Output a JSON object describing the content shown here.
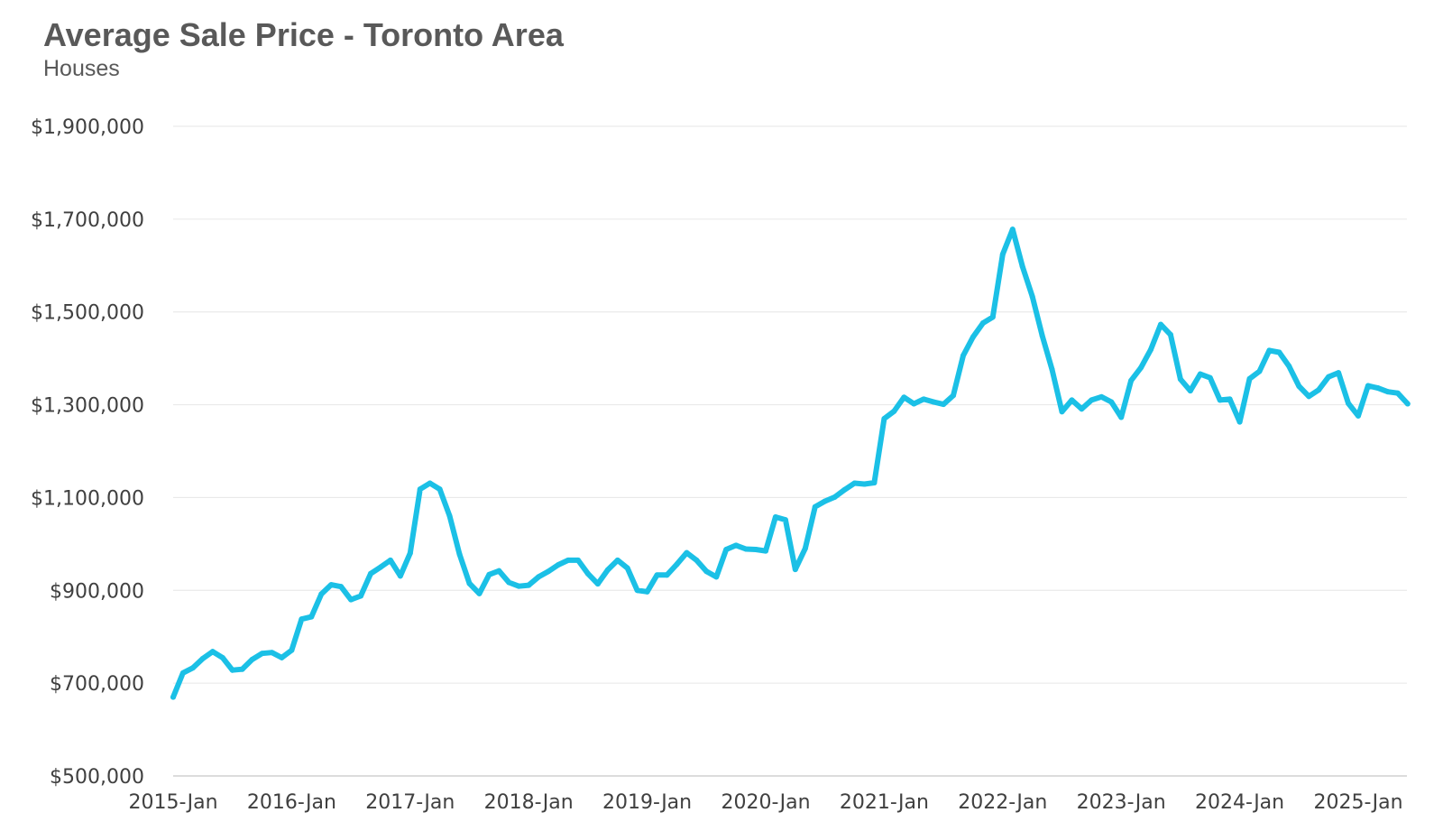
{
  "chart_data": {
    "type": "line",
    "title": "Average Sale Price - Toronto Area",
    "subtitle": "Houses",
    "xlabel": "",
    "ylabel": "",
    "ylim": [
      500000,
      1900000
    ],
    "yticks": [
      500000,
      700000,
      900000,
      1100000,
      1300000,
      1500000,
      1700000,
      1900000
    ],
    "ytick_labels": [
      "$500,000",
      "$700,000",
      "$900,000",
      "$1,100,000",
      "$1,300,000",
      "$1,500,000",
      "$1,700,000",
      "$1,900,000"
    ],
    "xtick_labels": [
      "2015-Jan",
      "2016-Jan",
      "2017-Jan",
      "2018-Jan",
      "2019-Jan",
      "2020-Jan",
      "2021-Jan",
      "2022-Jan",
      "2023-Jan",
      "2024-Jan",
      "2025-Jan"
    ],
    "grid": true,
    "legend": "none",
    "line_color": "#1BC0E6",
    "series": [
      {
        "x": [
          "2015-Jan",
          "2015-Feb",
          "2015-Mar",
          "2015-Apr",
          "2015-May",
          "2015-Jun",
          "2015-Jul",
          "2015-Aug",
          "2015-Sep",
          "2015-Oct",
          "2015-Nov",
          "2015-Dec",
          "2016-Jan",
          "2016-Feb",
          "2016-Mar",
          "2016-Apr",
          "2016-May",
          "2016-Jun",
          "2016-Jul",
          "2016-Aug",
          "2016-Sep",
          "2016-Oct",
          "2016-Nov",
          "2016-Dec",
          "2017-Jan",
          "2017-Feb",
          "2017-Mar",
          "2017-Apr",
          "2017-May",
          "2017-Jun",
          "2017-Jul",
          "2017-Aug",
          "2017-Sep",
          "2017-Oct",
          "2017-Nov",
          "2017-Dec",
          "2018-Jan",
          "2018-Feb",
          "2018-Mar",
          "2018-Apr",
          "2018-May",
          "2018-Jun",
          "2018-Jul",
          "2018-Aug",
          "2018-Sep",
          "2018-Oct",
          "2018-Nov",
          "2018-Dec",
          "2019-Jan",
          "2019-Feb",
          "2019-Mar",
          "2019-Apr",
          "2019-May",
          "2019-Jun",
          "2019-Jul",
          "2019-Aug",
          "2019-Sep",
          "2019-Oct",
          "2019-Nov",
          "2019-Dec",
          "2020-Jan",
          "2020-Feb",
          "2020-Mar",
          "2020-Apr",
          "2020-May",
          "2020-Jun",
          "2020-Jul",
          "2020-Aug",
          "2020-Sep",
          "2020-Oct",
          "2020-Nov",
          "2020-Dec",
          "2021-Jan",
          "2021-Feb",
          "2021-Mar",
          "2021-Apr",
          "2021-May",
          "2021-Jun",
          "2021-Jul",
          "2021-Aug",
          "2021-Sep",
          "2021-Oct",
          "2021-Nov",
          "2021-Dec",
          "2022-Jan",
          "2022-Feb",
          "2022-Mar",
          "2022-Apr",
          "2022-May",
          "2022-Jun",
          "2022-Jul",
          "2022-Aug",
          "2022-Sep",
          "2022-Oct",
          "2022-Nov",
          "2022-Dec",
          "2023-Jan",
          "2023-Feb",
          "2023-Mar",
          "2023-Apr",
          "2023-May",
          "2023-Jun",
          "2023-Jul",
          "2023-Aug",
          "2023-Sep",
          "2023-Oct",
          "2023-Nov",
          "2023-Dec",
          "2024-Jan",
          "2024-Feb",
          "2024-Mar",
          "2024-Apr",
          "2024-May",
          "2024-Jun",
          "2024-Jul",
          "2024-Aug",
          "2024-Sep",
          "2024-Oct",
          "2024-Nov",
          "2024-Dec",
          "2025-Jan",
          "2025-Feb",
          "2025-Mar",
          "2025-Apr",
          "2025-May",
          "2025-Jun"
        ],
        "values": [
          670000,
          722000,
          733000,
          753000,
          768000,
          755000,
          728000,
          730000,
          751000,
          764000,
          766000,
          755000,
          771000,
          838000,
          843000,
          892000,
          912000,
          908000,
          880000,
          888000,
          936000,
          950000,
          965000,
          931000,
          980000,
          1118000,
          1131000,
          1118000,
          1060000,
          978000,
          915000,
          893000,
          934000,
          942000,
          917000,
          909000,
          911000,
          929000,
          941000,
          955000,
          965000,
          965000,
          936000,
          914000,
          944000,
          965000,
          948000,
          900000,
          897000,
          933000,
          933000,
          956000,
          981000,
          965000,
          941000,
          929000,
          988000,
          997000,
          989000,
          988000,
          985000,
          1058000,
          1052000,
          945000,
          990000,
          1080000,
          1092000,
          1101000,
          1117000,
          1131000,
          1129000,
          1132000,
          1270000,
          1286000,
          1316000,
          1302000,
          1312000,
          1306000,
          1301000,
          1320000,
          1406000,
          1446000,
          1476000,
          1489000,
          1624000,
          1678000,
          1598000,
          1533000,
          1449000,
          1376000,
          1285000,
          1310000,
          1291000,
          1310000,
          1317000,
          1306000,
          1273000,
          1352000,
          1380000,
          1419000,
          1473000,
          1451000,
          1355000,
          1330000,
          1366000,
          1358000,
          1310000,
          1312000,
          1263000,
          1356000,
          1372000,
          1417000,
          1413000,
          1383000,
          1340000,
          1318000,
          1332000,
          1360000,
          1369000,
          1303000,
          1276000,
          1341000,
          1336000,
          1328000,
          1325000,
          1302000
        ]
      }
    ]
  }
}
